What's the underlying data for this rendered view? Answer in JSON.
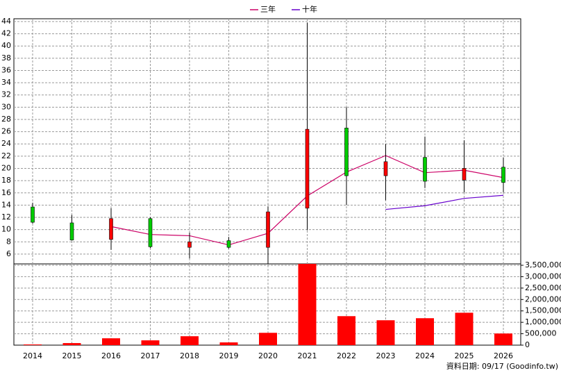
{
  "chart_data": {
    "type": "candlestick",
    "categories": [
      "2014",
      "2015",
      "2016",
      "2017",
      "2018",
      "2019",
      "2020",
      "2021",
      "2022",
      "2023",
      "2024",
      "2025",
      "2026"
    ],
    "open": [
      13.7,
      11.1,
      8.4,
      11.8,
      7.1,
      8.2,
      7.1,
      13.5,
      26.6,
      18.8,
      21.8,
      18.1,
      20.2
    ],
    "high": [
      14.4,
      12.4,
      13.5,
      12.0,
      9.5,
      8.8,
      13.8,
      43.8,
      30.0,
      24.0,
      25.2,
      24.6,
      21.8
    ],
    "low": [
      11.0,
      8.2,
      6.7,
      7.0,
      5.3,
      6.9,
      4.4,
      9.9,
      14.0,
      14.8,
      16.8,
      16.1,
      16.1
    ],
    "close": [
      11.2,
      8.3,
      11.8,
      7.2,
      8.0,
      7.1,
      12.9,
      26.4,
      18.8,
      21.1,
      17.9,
      20.0,
      17.7
    ],
    "up_color": "#ff0000",
    "down_color": "#00cc00",
    "series": [
      {
        "name": "三年",
        "color": "#cc0066",
        "values": [
          null,
          null,
          10.5,
          9.2,
          9.0,
          7.5,
          9.4,
          15.5,
          19.4,
          22.1,
          19.3,
          19.7,
          18.5
        ]
      },
      {
        "name": "十年",
        "color": "#6600cc",
        "values": [
          null,
          null,
          null,
          null,
          null,
          null,
          null,
          null,
          null,
          13.3,
          13.9,
          15.1,
          15.6
        ]
      }
    ],
    "ylim": [
      4.4,
      44.45
    ],
    "yticks": [
      6,
      8,
      10,
      12,
      14,
      16,
      18,
      20,
      22,
      24,
      26,
      28,
      30,
      32,
      34,
      36,
      38,
      40,
      42,
      44
    ],
    "volume": {
      "color": "#ff0000",
      "values": [
        30000,
        90000,
        300000,
        210000,
        390000,
        120000,
        540000,
        3560000,
        1270000,
        1090000,
        1180000,
        1420000,
        510000
      ],
      "ylim": [
        0,
        3530000
      ],
      "yticks": [
        0,
        {
          "value": 500000,
          "label": "500,000"
        },
        {
          "value": 1000000,
          "label": "1,000,000"
        },
        {
          "value": 1500000,
          "label": "1,500,000"
        },
        {
          "value": 2000000,
          "label": "2,000,000"
        },
        {
          "value": 2500000,
          "label": "2,500,000"
        },
        {
          "value": 3000000,
          "label": "3,000,000"
        },
        {
          "value": 3500000,
          "label": "3,500,000"
        }
      ]
    },
    "grid": true,
    "note": "資料日期: 09/17  (Goodinfo.tw)"
  }
}
